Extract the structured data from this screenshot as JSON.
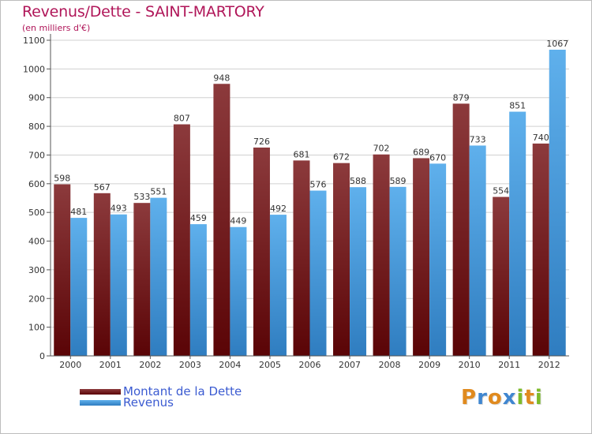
{
  "title": "Revenus/Dette - SAINT-MARTORY",
  "subtitle": "(en milliers d'€)",
  "legend": [
    {
      "label": "Montant de la Dette",
      "color": "#7a1a1c"
    },
    {
      "label": "Revenus",
      "color": "#4a9fe0"
    }
  ],
  "logo": {
    "letters": [
      "P",
      "r",
      "o",
      "x",
      "i",
      "t",
      "i"
    ],
    "colors": [
      "#e08a1e",
      "#3f86d0",
      "#e08a1e",
      "#3f86d0",
      "#7dbb2a",
      "#e08a1e",
      "#7dbb2a"
    ]
  },
  "chart_data": {
    "type": "bar",
    "categories": [
      "2000",
      "2001",
      "2002",
      "2003",
      "2004",
      "2005",
      "2006",
      "2007",
      "2008",
      "2009",
      "2010",
      "2011",
      "2012"
    ],
    "series": [
      {
        "name": "Montant de la Dette",
        "color": "#7a1a1c",
        "values": [
          598,
          567,
          533,
          807,
          948,
          726,
          681,
          672,
          702,
          689,
          879,
          554,
          740
        ]
      },
      {
        "name": "Revenus",
        "color": "#4a9fe0",
        "values": [
          481,
          493,
          551,
          459,
          449,
          492,
          576,
          588,
          589,
          670,
          733,
          851,
          1067
        ]
      }
    ],
    "yticks": [
      0,
      100,
      200,
      300,
      400,
      500,
      600,
      700,
      800,
      900,
      1000,
      1100
    ],
    "ylim": [
      0,
      1100
    ],
    "grid": true,
    "legend_position": "bottom-left"
  }
}
